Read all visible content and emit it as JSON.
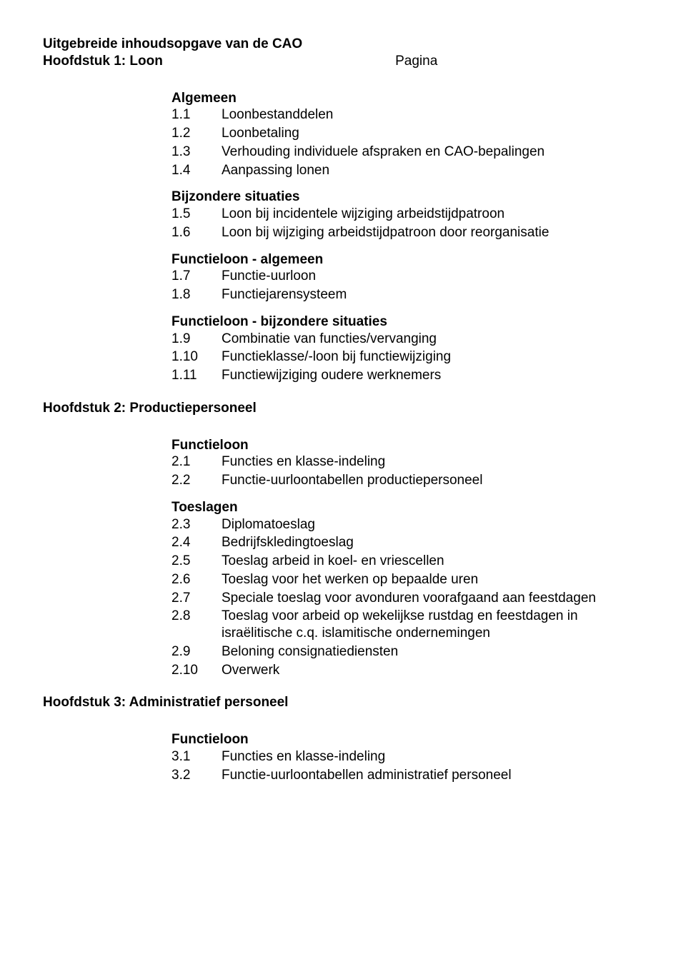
{
  "title": "Uitgebreide inhoudsopgave van de CAO",
  "pagina": "Pagina",
  "ch1": {
    "heading": "Hoofdstuk  1:   Loon",
    "s1": {
      "heading": "Algemeen",
      "i1": {
        "n": "1.1",
        "t": "Loonbestanddelen"
      },
      "i2": {
        "n": "1.2",
        "t": "Loonbetaling"
      },
      "i3": {
        "n": "1.3",
        "t": "Verhouding individuele afspraken en CAO-bepalingen"
      },
      "i4": {
        "n": "1.4",
        "t": "Aanpassing lonen"
      }
    },
    "s2": {
      "heading": "Bijzondere situaties",
      "i1": {
        "n": "1.5",
        "t": "Loon bij incidentele wijziging arbeidstijdpatroon"
      },
      "i2": {
        "n": "1.6",
        "t": "Loon bij wijziging arbeidstijdpatroon door reorganisatie"
      }
    },
    "s3": {
      "heading": "Functieloon - algemeen",
      "i1": {
        "n": "1.7",
        "t": "Functie-uurloon"
      },
      "i2": {
        "n": "1.8",
        "t": "Functiejarensysteem"
      }
    },
    "s4": {
      "heading": "Functieloon - bijzondere situaties",
      "i1": {
        "n": "1.9",
        "t": "Combinatie van functies/vervanging"
      },
      "i2": {
        "n": "1.10",
        "t": "Functieklasse/-loon bij functiewijziging"
      },
      "i3": {
        "n": "1.11",
        "t": "Functiewijziging oudere werknemers"
      }
    }
  },
  "ch2": {
    "heading": "Hoofdstuk  2:  Productiepersoneel",
    "s1": {
      "heading": "Functieloon",
      "i1": {
        "n": "2.1",
        "t": "Functies en klasse-indeling"
      },
      "i2": {
        "n": "2.2",
        "t": "Functie-uurloontabellen productiepersoneel"
      }
    },
    "s2": {
      "heading": "Toeslagen",
      "i1": {
        "n": "2.3",
        "t": "Diplomatoeslag"
      },
      "i2": {
        "n": "2.4",
        "t": "Bedrijfskledingtoeslag"
      },
      "i3": {
        "n": "2.5",
        "t": "Toeslag arbeid in koel- en vriescellen"
      },
      "i4": {
        "n": "2.6",
        "t": "Toeslag voor het werken op bepaalde uren"
      },
      "i5": {
        "n": "2.7",
        "t": "Speciale toeslag voor avonduren voorafgaand aan feestdagen"
      },
      "i6": {
        "n": "2.8",
        "t": "Toeslag voor arbeid op wekelijkse rustdag en feestdagen in israëlitische c.q. islamitische ondernemingen"
      },
      "i7": {
        "n": "2.9",
        "t": "Beloning consignatiediensten"
      },
      "i8": {
        "n": "2.10",
        "t": "Overwerk"
      }
    }
  },
  "ch3": {
    "heading": "Hoofdstuk 3:   Administratief personeel",
    "s1": {
      "heading": "Functieloon",
      "i1": {
        "n": "3.1",
        "t": "Functies en klasse-indeling"
      },
      "i2": {
        "n": "3.2",
        "t": "Functie-uurloontabellen administratief personeel"
      }
    }
  }
}
